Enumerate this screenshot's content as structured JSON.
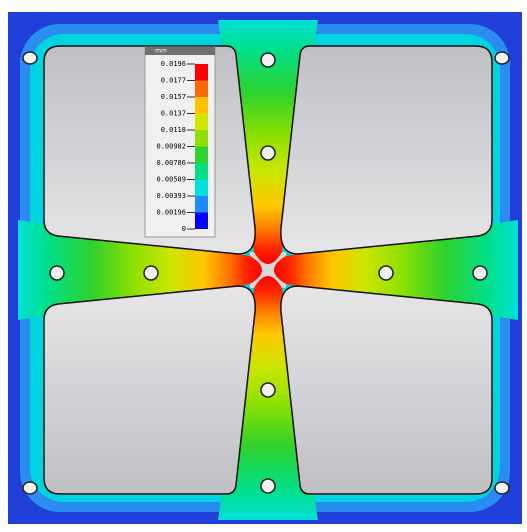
{
  "legend": {
    "title": "mm",
    "labels": [
      "0.0196",
      "0.0177",
      "0.0157",
      "0.0137",
      "0.0118",
      "0.00982",
      "0.00786",
      "0.00589",
      "0.00393",
      "0.00196",
      "0"
    ]
  }
}
